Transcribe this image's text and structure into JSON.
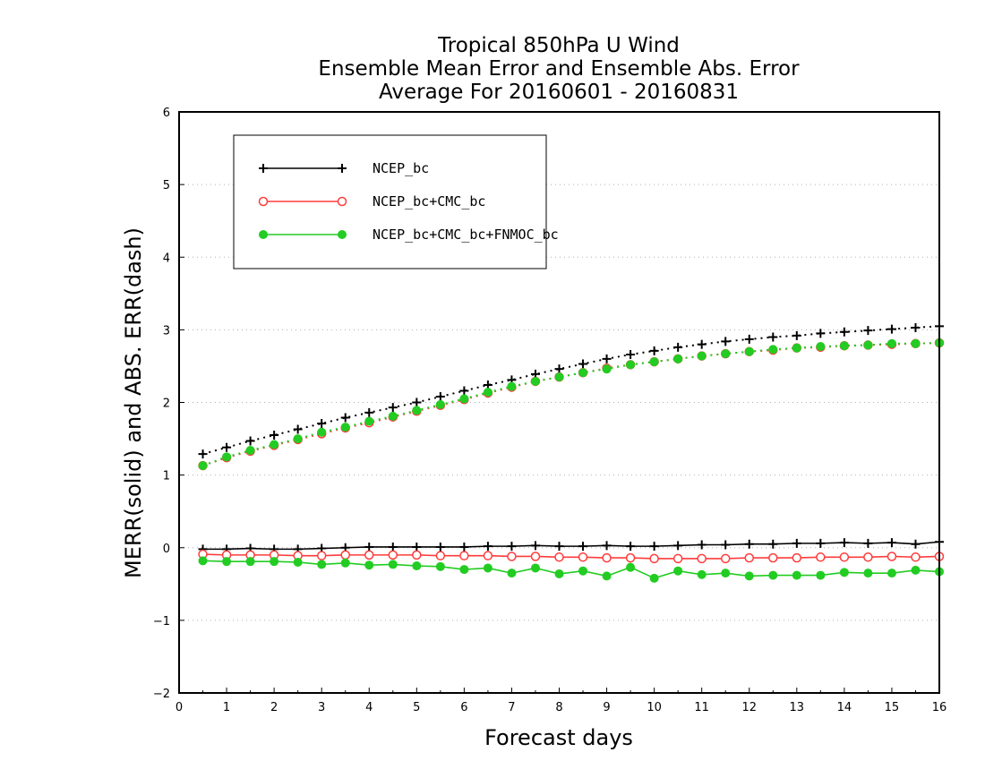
{
  "chart_data": {
    "type": "line",
    "title": [
      "Tropical 850hPa U Wind",
      "Ensemble Mean Error and Ensemble Abs. Error",
      "Average For 20160601 - 20160831"
    ],
    "xlabel": "Forecast days",
    "ylabel": "MERR(solid) and ABS. ERR(dash)",
    "xlim": [
      0,
      16
    ],
    "ylim": [
      -2,
      6
    ],
    "xticks": [
      0,
      1,
      2,
      3,
      4,
      5,
      6,
      7,
      8,
      9,
      10,
      11,
      12,
      13,
      14,
      15,
      16
    ],
    "xtick_labels": [
      "0",
      "1",
      "2",
      "3",
      "4",
      "5",
      "6",
      "7",
      "8",
      "9",
      "10",
      "11",
      "12",
      "13",
      "14",
      "15",
      "16"
    ],
    "yticks": [
      -2,
      -1,
      0,
      1,
      2,
      3,
      4,
      5,
      6
    ],
    "ytick_labels": [
      "−2",
      "−1",
      "0",
      "1",
      "2",
      "3",
      "4",
      "5",
      "6"
    ],
    "grid": "horizontal dotted",
    "legend": {
      "placement": "top-left"
    },
    "x": [
      0.5,
      1.0,
      1.5,
      2.0,
      2.5,
      3.0,
      3.5,
      4.0,
      4.5,
      5.0,
      5.5,
      6.0,
      6.5,
      7.0,
      7.5,
      8.0,
      8.5,
      9.0,
      9.5,
      10.0,
      10.5,
      11.0,
      11.5,
      12.0,
      12.5,
      13.0,
      13.5,
      14.0,
      14.5,
      15.0,
      15.5,
      16.0
    ],
    "series": [
      {
        "name": "NCEP_bc",
        "color": "#000000",
        "marker": "plus",
        "merr": [
          -0.02,
          -0.02,
          -0.01,
          -0.02,
          -0.02,
          -0.01,
          0.0,
          0.01,
          0.01,
          0.01,
          0.01,
          0.01,
          0.02,
          0.02,
          0.03,
          0.02,
          0.02,
          0.03,
          0.02,
          0.02,
          0.03,
          0.04,
          0.04,
          0.05,
          0.05,
          0.06,
          0.06,
          0.07,
          0.06,
          0.07,
          0.05,
          0.08
        ],
        "abs_err": [
          1.29,
          1.38,
          1.47,
          1.55,
          1.63,
          1.71,
          1.79,
          1.86,
          1.93,
          2.0,
          2.08,
          2.16,
          2.24,
          2.31,
          2.39,
          2.46,
          2.53,
          2.6,
          2.66,
          2.71,
          2.76,
          2.8,
          2.84,
          2.87,
          2.9,
          2.92,
          2.95,
          2.97,
          2.99,
          3.01,
          3.03,
          3.05
        ]
      },
      {
        "name": "NCEP_bc+CMC_bc",
        "color": "#ff3b3b",
        "marker": "open-circle",
        "merr": [
          -0.09,
          -0.1,
          -0.1,
          -0.1,
          -0.11,
          -0.11,
          -0.1,
          -0.1,
          -0.1,
          -0.1,
          -0.11,
          -0.11,
          -0.11,
          -0.12,
          -0.12,
          -0.13,
          -0.13,
          -0.14,
          -0.14,
          -0.15,
          -0.15,
          -0.15,
          -0.15,
          -0.14,
          -0.14,
          -0.14,
          -0.13,
          -0.13,
          -0.13,
          -0.12,
          -0.13,
          -0.12
        ],
        "abs_err": [
          1.13,
          1.24,
          1.33,
          1.41,
          1.49,
          1.57,
          1.65,
          1.72,
          1.8,
          1.88,
          1.96,
          2.04,
          2.13,
          2.21,
          2.29,
          2.35,
          2.41,
          2.47,
          2.52,
          2.56,
          2.6,
          2.64,
          2.67,
          2.7,
          2.72,
          2.75,
          2.76,
          2.78,
          2.79,
          2.8,
          2.81,
          2.82
        ]
      },
      {
        "name": "NCEP_bc+CMC_bc+FNMOC_bc",
        "color": "#22cc22",
        "marker": "filled-circle",
        "merr": [
          -0.18,
          -0.19,
          -0.19,
          -0.19,
          -0.2,
          -0.23,
          -0.21,
          -0.24,
          -0.23,
          -0.25,
          -0.26,
          -0.3,
          -0.28,
          -0.35,
          -0.28,
          -0.36,
          -0.32,
          -0.39,
          -0.27,
          -0.42,
          -0.32,
          -0.37,
          -0.35,
          -0.39,
          -0.38,
          -0.38,
          -0.38,
          -0.34,
          -0.35,
          -0.35,
          -0.31,
          -0.33
        ],
        "abs_err": [
          1.13,
          1.25,
          1.34,
          1.42,
          1.5,
          1.59,
          1.66,
          1.74,
          1.81,
          1.89,
          1.97,
          2.05,
          2.14,
          2.22,
          2.29,
          2.35,
          2.41,
          2.46,
          2.52,
          2.56,
          2.6,
          2.64,
          2.67,
          2.7,
          2.73,
          2.75,
          2.77,
          2.78,
          2.79,
          2.81,
          2.81,
          2.82
        ]
      }
    ]
  }
}
